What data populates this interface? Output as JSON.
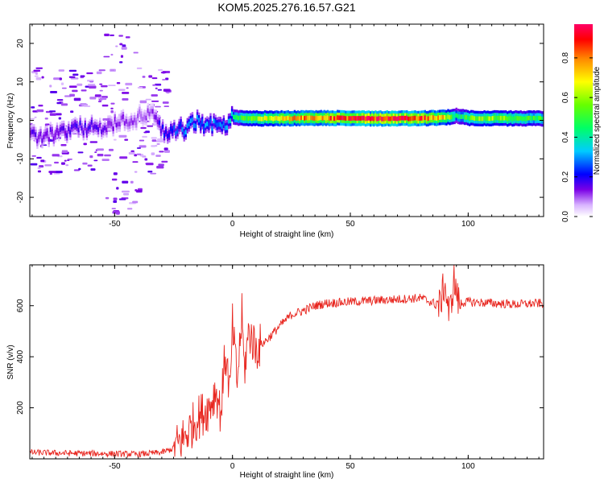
{
  "title": "KOM5.2025.276.16.57.G21",
  "colors": {
    "snr_line": "#e8261f",
    "axis": "#000000",
    "background": "#ffffff"
  },
  "chart_data": [
    {
      "type": "heatmap",
      "xlabel": "Height of straight line (km)",
      "ylabel": "Frequency (Hz)",
      "xlim": [
        -86,
        132
      ],
      "ylim": [
        -25,
        25
      ],
      "xticks": [
        -50,
        0,
        50,
        100
      ],
      "yticks": [
        -20,
        -10,
        0,
        10,
        20
      ],
      "colorbar": {
        "label": "Normalized spectral amplitude",
        "lim": [
          0,
          0.97
        ],
        "ticks": [
          0.0,
          0.2,
          0.4,
          0.6,
          0.8
        ],
        "colormap": "rainbow (white-violet-blue-cyan-green-yellow-orange-red-magenta)"
      },
      "ridge": {
        "description": "Dominant frequency track vs height",
        "x": [
          -86,
          -75,
          -65,
          -55,
          -45,
          -35,
          -30,
          -25,
          -20,
          -15,
          -10,
          -5,
          -2,
          0,
          5,
          10,
          20,
          40,
          60,
          80,
          90,
          95,
          100,
          110,
          120,
          132
        ],
        "y": [
          -4.5,
          -3.5,
          -2,
          -2,
          0,
          2,
          -3,
          -2.5,
          -2,
          -0.5,
          -1.5,
          -1,
          -0.5,
          0.8,
          0.6,
          0.5,
          0.5,
          0.6,
          0.5,
          0.5,
          0.7,
          1.2,
          0.6,
          0.5,
          0.5,
          0.5
        ],
        "amplitude": [
          0.15,
          0.15,
          0.18,
          0.15,
          0.12,
          0.1,
          0.2,
          0.25,
          0.3,
          0.3,
          0.3,
          0.3,
          0.35,
          0.4,
          0.55,
          0.6,
          0.75,
          0.85,
          0.95,
          0.9,
          0.7,
          0.4,
          0.55,
          0.6,
          0.55,
          0.5
        ]
      }
    },
    {
      "type": "line",
      "xlabel": "Height of straight line (km)",
      "ylabel": "SNR (v/v)",
      "xlim": [
        -86,
        132
      ],
      "ylim": [
        0,
        760
      ],
      "xticks": [
        -50,
        0,
        50,
        100
      ],
      "yticks": [
        200,
        400,
        600
      ],
      "series": [
        {
          "x": [
            -86,
            -70,
            -50,
            -40,
            -30,
            -25,
            -20,
            -15,
            -10,
            -7,
            -5,
            -3,
            -1,
            0,
            2,
            4,
            5,
            7,
            10,
            15,
            20,
            25,
            30,
            35,
            40,
            50,
            60,
            70,
            80,
            88,
            90,
            92,
            94,
            96,
            100,
            110,
            120,
            132
          ],
          "y": [
            25,
            22,
            20,
            18,
            25,
            40,
            90,
            160,
            200,
            270,
            180,
            420,
            250,
            520,
            300,
            560,
            350,
            500,
            430,
            470,
            520,
            565,
            580,
            600,
            610,
            615,
            620,
            625,
            630,
            600,
            690,
            560,
            700,
            610,
            615,
            610,
            605,
            610
          ]
        }
      ]
    }
  ]
}
